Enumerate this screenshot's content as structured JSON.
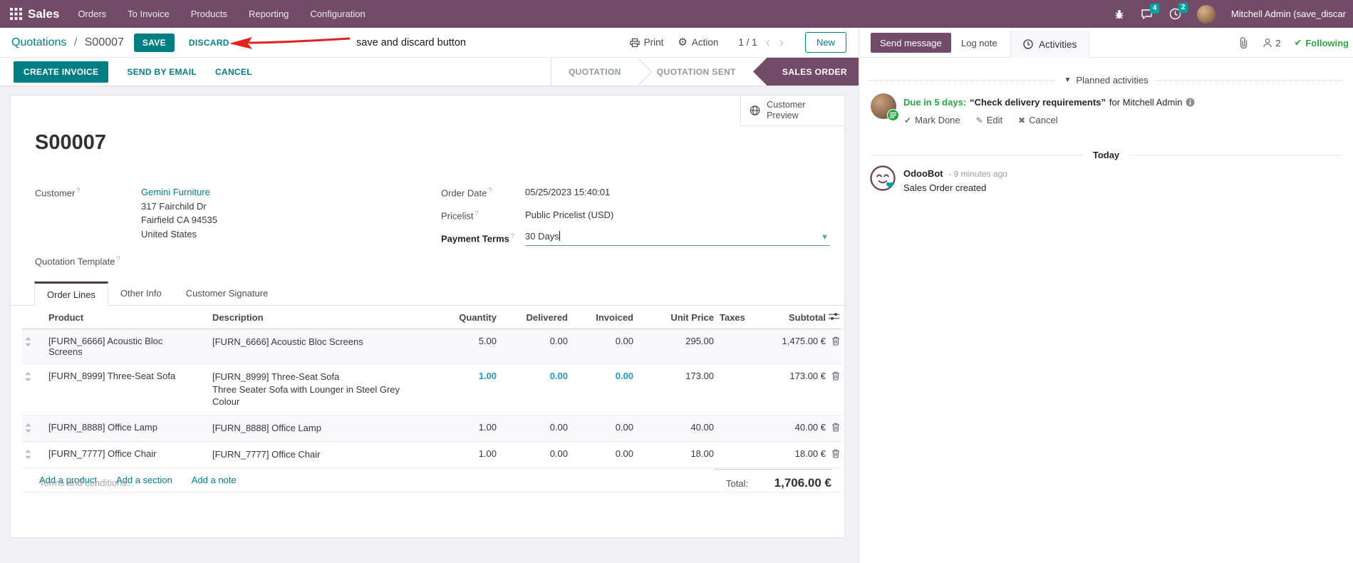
{
  "colors": {
    "purple": "#714B67",
    "teal": "#017E84",
    "badge": "#00A09D",
    "green": "#28a745",
    "blue": "#2696C8",
    "red": "#E0231D"
  },
  "nav": {
    "app_name": "Sales",
    "menus": [
      "Orders",
      "To Invoice",
      "Products",
      "Reporting",
      "Configuration"
    ],
    "message_badge": "4",
    "activity_badge": "2",
    "user_name": "Mitchell Admin (save_discar"
  },
  "control": {
    "breadcrumb_parent": "Quotations",
    "breadcrumb_sep": "/",
    "breadcrumb_current": "S00007",
    "save_label": "SAVE",
    "discard_label": "DISCARD",
    "annotation": "save and discard button",
    "print_label": "Print",
    "action_label": "Action",
    "pager": "1 / 1",
    "prev": "‹",
    "next": "›",
    "new_label": "New"
  },
  "status": {
    "buttons": [
      "CREATE INVOICE",
      "SEND BY EMAIL",
      "CANCEL"
    ],
    "steps": [
      {
        "label": "QUOTATION",
        "active": false
      },
      {
        "label": "QUOTATION SENT",
        "active": false
      },
      {
        "label": "SALES ORDER",
        "active": true
      }
    ]
  },
  "form": {
    "customer_preview_label": "Customer Preview",
    "title": "S00007",
    "help_marker": "?",
    "customer_label": "Customer",
    "customer_name": "Gemini Furniture",
    "customer_address": [
      "317 Fairchild Dr",
      "Fairfield CA 94535",
      "United States"
    ],
    "quotation_template_label": "Quotation Template",
    "order_date_label": "Order Date",
    "order_date_value": "05/25/2023 15:40:01",
    "pricelist_label": "Pricelist",
    "pricelist_value": "Public Pricelist (USD)",
    "payment_terms_label": "Payment Terms",
    "payment_terms_value": "30 Days",
    "tabs": [
      "Order Lines",
      "Other Info",
      "Customer Signature"
    ],
    "order_lines": {
      "columns": [
        "Product",
        "Description",
        "Quantity",
        "Delivered",
        "Invoiced",
        "Unit Price",
        "Taxes",
        "Subtotal"
      ],
      "rows": [
        {
          "product": "[FURN_6666] Acoustic Bloc Screens",
          "description": "[FURN_6666] Acoustic Bloc Screens",
          "description2": "",
          "quantity": "5.00",
          "delivered": "0.00",
          "invoiced": "0.00",
          "unit_price": "295.00",
          "taxes": "",
          "subtotal": "1,475.00 €",
          "highlight": false
        },
        {
          "product": "[FURN_8999] Three-Seat Sofa",
          "description": "[FURN_8999] Three-Seat Sofa",
          "description2": "Three Seater Sofa with Lounger in Steel Grey Colour",
          "quantity": "1.00",
          "delivered": "0.00",
          "invoiced": "0.00",
          "unit_price": "173.00",
          "taxes": "",
          "subtotal": "173.00 €",
          "highlight": true
        },
        {
          "product": "[FURN_8888] Office Lamp",
          "description": "[FURN_8888] Office Lamp",
          "description2": "",
          "quantity": "1.00",
          "delivered": "0.00",
          "invoiced": "0.00",
          "unit_price": "40.00",
          "taxes": "",
          "subtotal": "40.00 €",
          "highlight": false
        },
        {
          "product": "[FURN_7777] Office Chair",
          "description": "[FURN_7777] Office Chair",
          "description2": "",
          "quantity": "1.00",
          "delivered": "0.00",
          "invoiced": "0.00",
          "unit_price": "18.00",
          "taxes": "",
          "subtotal": "18.00 €",
          "highlight": false
        }
      ],
      "add_links": [
        "Add a product",
        "Add a section",
        "Add a note"
      ]
    },
    "terms_placeholder": "Terms and conditions...",
    "total_label": "Total:",
    "total_value": "1,706.00 €"
  },
  "chatter": {
    "send_message": "Send message",
    "log_note": "Log note",
    "activities": "Activities",
    "followers_count": "2",
    "following": "Following",
    "following_check": "✔",
    "planned_header": "Planned activities",
    "activity": {
      "due": "Due in 5 days:",
      "summary": "“Check delivery requirements”",
      "for_user": "for Mitchell Admin",
      "mark_done": "Mark Done",
      "edit": "Edit",
      "cancel": "Cancel",
      "mark_done_icon": "✔",
      "edit_icon": "✎",
      "cancel_icon": "✖"
    },
    "today": "Today",
    "message": {
      "author": "OdooBot",
      "time": "- 9 minutes ago",
      "body": "Sales Order created"
    }
  }
}
